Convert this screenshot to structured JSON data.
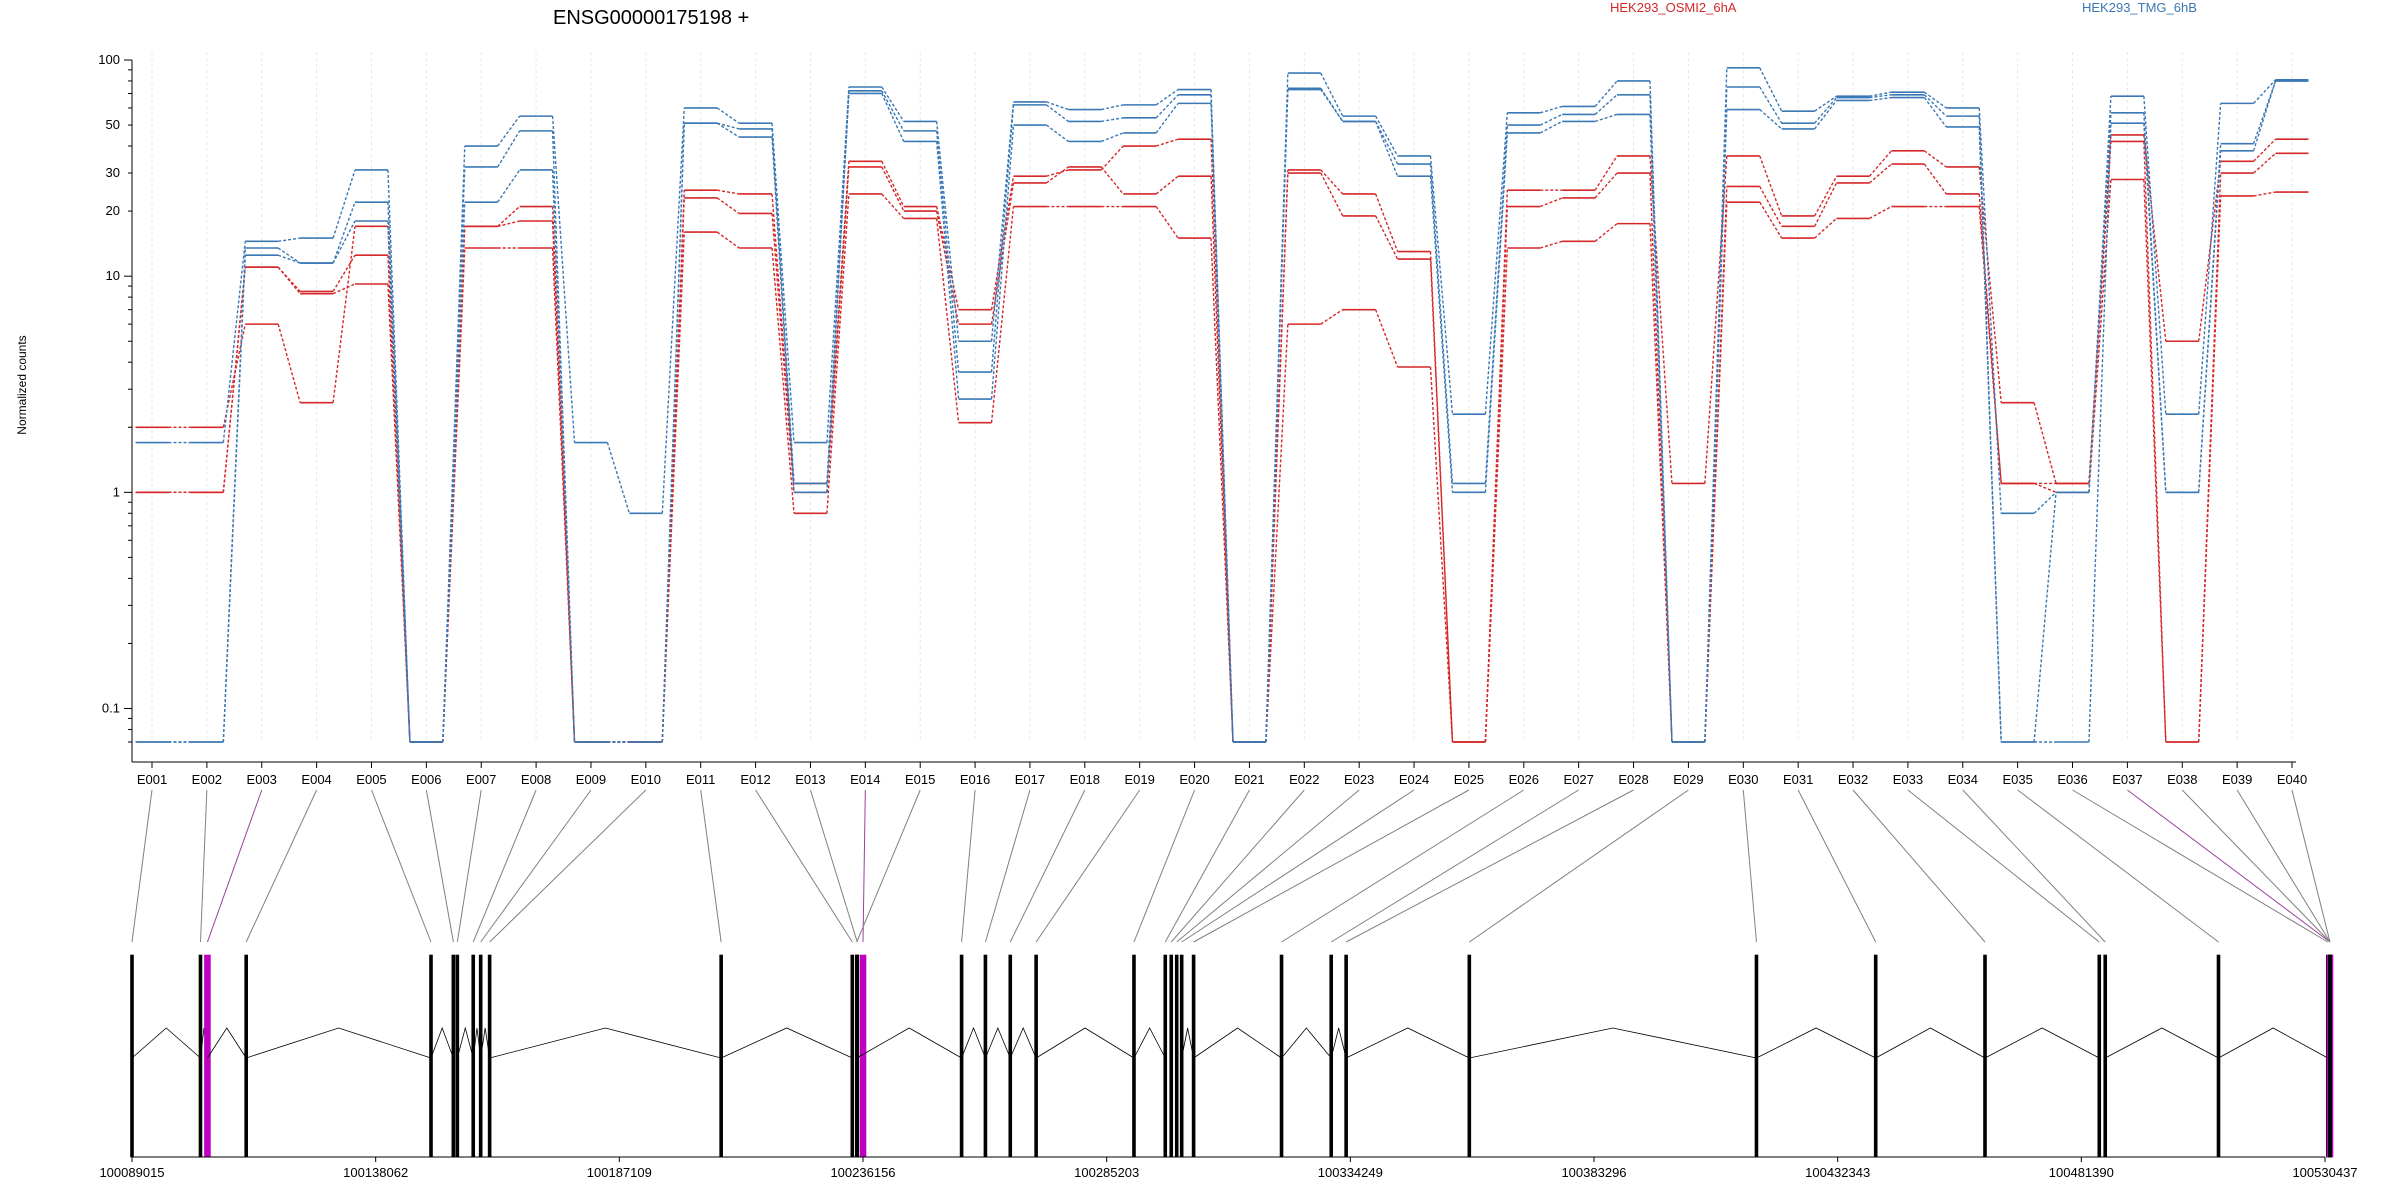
{
  "title": "ENSG00000175198 +",
  "colors": {
    "HEK293_OSMI2_6hA": "#d62728",
    "HEK293_TMG_6hB": "#3a78b5",
    "axis": "#000000",
    "connector": "#808080",
    "highlight_connector": "#9b3fa0",
    "highlight_exon": "#c000c0",
    "grid": "#e6e6e6"
  },
  "chart_data": [
    {
      "type": "line",
      "title": "ENSG00000175198 +",
      "ylabel": "Normalized counts",
      "xlabel": "",
      "y_scale": "log",
      "ylim": [
        0.07,
        100
      ],
      "y_ticks": [
        0.1,
        1,
        10,
        20,
        30,
        50,
        100
      ],
      "y_tick_labels": [
        "0.1",
        "1",
        "10",
        "20",
        "30",
        "50",
        "100"
      ],
      "grid": "vertical",
      "legend": "top-right",
      "categories": [
        "E001",
        "E002",
        "E003",
        "E004",
        "E005",
        "E006",
        "E007",
        "E008",
        "E009",
        "E010",
        "E011",
        "E012",
        "E013",
        "E014",
        "E015",
        "E016",
        "E017",
        "E018",
        "E019",
        "E020",
        "E021",
        "E022",
        "E023",
        "E024",
        "E025",
        "E026",
        "E027",
        "E028",
        "E029",
        "E030",
        "E031",
        "E032",
        "E033",
        "E034",
        "E035",
        "E036",
        "E037",
        "E038",
        "E039",
        "E040"
      ],
      "series": [
        {
          "name": "HEK293_OSMI2_6hA",
          "values": [
            2.0,
            2.0,
            6.0,
            2.6,
            17,
            0.07,
            17,
            21,
            0.07,
            0.07,
            25,
            24,
            1.1,
            34,
            21,
            7.0,
            29,
            31,
            40,
            43,
            0.07,
            31,
            24,
            13,
            0.07,
            25,
            25,
            36,
            1.1,
            36,
            19,
            29,
            38,
            32,
            2.6,
            1.1,
            45,
            5.0,
            34,
            43
          ]
        },
        {
          "name": "HEK293_OSMI2_6hA",
          "values": [
            1.0,
            1.0,
            11,
            8.5,
            12.5,
            0.07,
            17,
            18,
            0.07,
            0.07,
            23,
            19.5,
            1.0,
            32,
            20,
            6.0,
            27,
            32,
            24,
            29,
            0.07,
            30,
            19,
            12,
            0.07,
            21,
            23,
            30,
            0.07,
            26,
            17,
            27,
            33,
            24,
            1.1,
            1.1,
            42,
            0.07,
            30,
            37
          ]
        },
        {
          "name": "HEK293_OSMI2_6hA",
          "values": [
            1.0,
            1.0,
            11,
            8.3,
            9.2,
            0.07,
            13.5,
            13.5,
            0.07,
            0.07,
            16,
            13.5,
            0.8,
            24,
            18.5,
            2.1,
            21,
            21,
            21,
            15,
            0.07,
            6.0,
            7.0,
            3.8,
            0.07,
            13.5,
            14.5,
            17.5,
            0.07,
            22,
            15,
            18.5,
            21,
            21,
            1.1,
            1.0,
            28,
            0.07,
            23.5,
            24.5
          ]
        },
        {
          "name": "HEK293_TMG_6hB",
          "values": [
            1.7,
            1.7,
            14.5,
            15,
            31,
            0.07,
            40,
            55,
            1.7,
            0.8,
            60,
            51,
            1.7,
            75,
            52,
            5.0,
            64,
            59,
            62,
            73,
            0.07,
            87,
            55,
            36,
            2.3,
            57,
            61,
            80,
            0.07,
            92,
            58,
            68,
            71,
            60,
            0.8,
            1.0,
            68,
            2.3,
            63,
            81
          ]
        },
        {
          "name": "HEK293_TMG_6hB",
          "values": [
            0.07,
            0.07,
            13.5,
            11.5,
            22,
            0.07,
            32,
            47,
            0.07,
            0.07,
            51,
            48,
            1.1,
            72,
            47,
            3.6,
            62,
            52,
            54,
            69,
            0.07,
            73,
            52,
            33,
            1.1,
            50,
            56,
            69,
            0.07,
            75,
            51,
            67,
            69,
            55,
            0.07,
            1.0,
            57,
            1.0,
            41,
            80
          ]
        },
        {
          "name": "HEK293_TMG_6hB",
          "values": [
            0.07,
            0.07,
            12.5,
            11.5,
            18,
            0.07,
            22,
            31,
            0.07,
            0.07,
            51,
            44,
            1.0,
            70,
            42,
            2.7,
            50,
            42,
            46,
            63,
            0.07,
            74,
            52,
            29,
            1.0,
            46,
            52,
            56,
            0.07,
            59,
            48,
            65,
            67,
            49,
            0.07,
            0.07,
            51,
            1.0,
            38,
            80
          ]
        }
      ]
    },
    {
      "type": "gene-model",
      "coordinate_ticks": [
        "100089015",
        "100138062",
        "100187109",
        "100236156",
        "100285203",
        "100334249",
        "100383296",
        "100432343",
        "100481390",
        "100530437"
      ],
      "coordinate_values": [
        100089015,
        100138062,
        100187109,
        100236156,
        100285203,
        100334249,
        100383296,
        100432343,
        100481390,
        100530437
      ],
      "exon_starts": [
        100089015,
        100102800,
        100104200,
        100112000,
        100149200,
        100153700,
        100154500,
        100157700,
        100159200,
        100161000,
        100207600,
        100234000,
        100235000,
        100236156,
        100234900,
        100256000,
        100260800,
        100265800,
        100271000,
        100290700,
        100297000,
        100298200,
        100299300,
        100300300,
        100302700,
        100320400,
        100330400,
        100333400,
        100358200,
        100416000,
        100440000,
        100462000,
        100485000,
        100486200,
        100509000,
        100531000,
        100532400,
        100533000,
        100533700,
        100534200
      ],
      "highlighted_exons": [
        "E003",
        "E014",
        "E037"
      ]
    }
  ]
}
